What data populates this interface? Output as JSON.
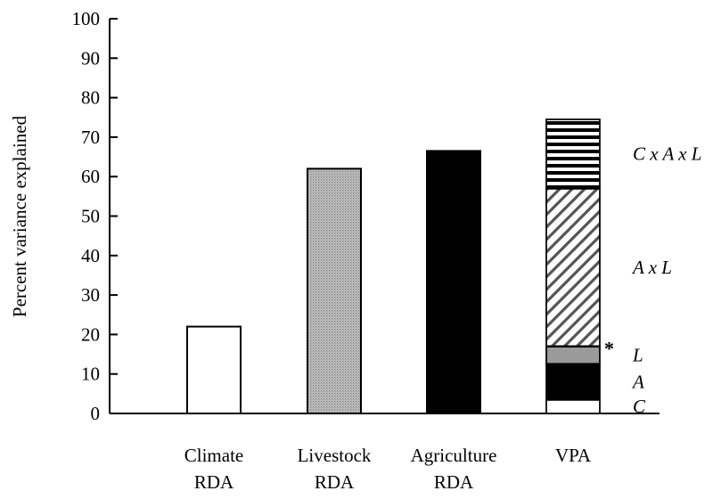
{
  "chart_data": {
    "type": "bar",
    "title": "",
    "xlabel": "",
    "ylabel": "Percent variance explained",
    "ylim": [
      0,
      100
    ],
    "yticks": [
      0,
      10,
      20,
      30,
      40,
      50,
      60,
      70,
      80,
      90,
      100
    ],
    "grid": false,
    "bars": [
      {
        "label_lines": [
          "Climate",
          "RDA"
        ],
        "value": 22,
        "fill": "white"
      },
      {
        "label_lines": [
          "Livestock",
          "RDA"
        ],
        "value": 62,
        "fill": "stipple-gray"
      },
      {
        "label_lines": [
          "Agriculture",
          "RDA"
        ],
        "value": 66.5,
        "fill": "black"
      },
      {
        "label_lines": [
          "VPA"
        ],
        "stacked": true,
        "segments": [
          {
            "label": "C",
            "value": 3.5,
            "fill": "white"
          },
          {
            "label": "A",
            "value": 9,
            "fill": "black"
          },
          {
            "label": "L",
            "value": 4.5,
            "fill": "gray"
          },
          {
            "label": "A x L",
            "value": 40,
            "fill": "diagonal-hatch"
          },
          {
            "label": "C x A x L",
            "value": 17.5,
            "fill": "horizontal-stripes"
          }
        ],
        "marker": {
          "text": "*",
          "at_value": 17
        }
      }
    ]
  },
  "colors": {
    "axis": "#000000",
    "gray_fill": "#9a9a9a",
    "black_fill": "#000000"
  }
}
